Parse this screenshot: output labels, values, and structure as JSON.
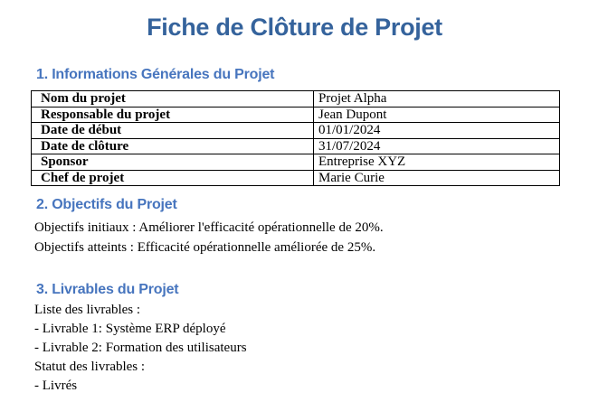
{
  "page": {
    "title": "Fiche de Clôture de Projet"
  },
  "colors": {
    "title_blue": "#35639C",
    "heading_blue": "#4775BE",
    "body_text": "#000000",
    "table_border": "#000000",
    "background": "#FFFFFF"
  },
  "sections": {
    "general_info": {
      "heading": "1. Informations Générales du Projet",
      "table": {
        "rows": [
          {
            "label": "Nom du projet",
            "value": "Projet Alpha"
          },
          {
            "label": "Responsable du projet",
            "value": "Jean Dupont"
          },
          {
            "label": "Date de début",
            "value": "01/01/2024"
          },
          {
            "label": "Date de clôture",
            "value": "31/07/2024"
          },
          {
            "label": "Sponsor",
            "value": "Entreprise XYZ"
          },
          {
            "label": "Chef de projet",
            "value": "Marie Curie"
          }
        ]
      }
    },
    "objectives": {
      "heading": "2. Objectifs du Projet",
      "paragraphs": [
        "Objectifs initiaux : Améliorer l'efficacité opérationnelle de 20%.",
        "Objectifs atteints : Efficacité opérationnelle améliorée de 25%."
      ]
    },
    "deliverables": {
      "heading": "3. Livrables du Projet",
      "lines": [
        "Liste des livrables :",
        "- Livrable 1: Système ERP déployé",
        "- Livrable 2: Formation des utilisateurs",
        "Statut des livrables :",
        "- Livrés"
      ]
    }
  }
}
